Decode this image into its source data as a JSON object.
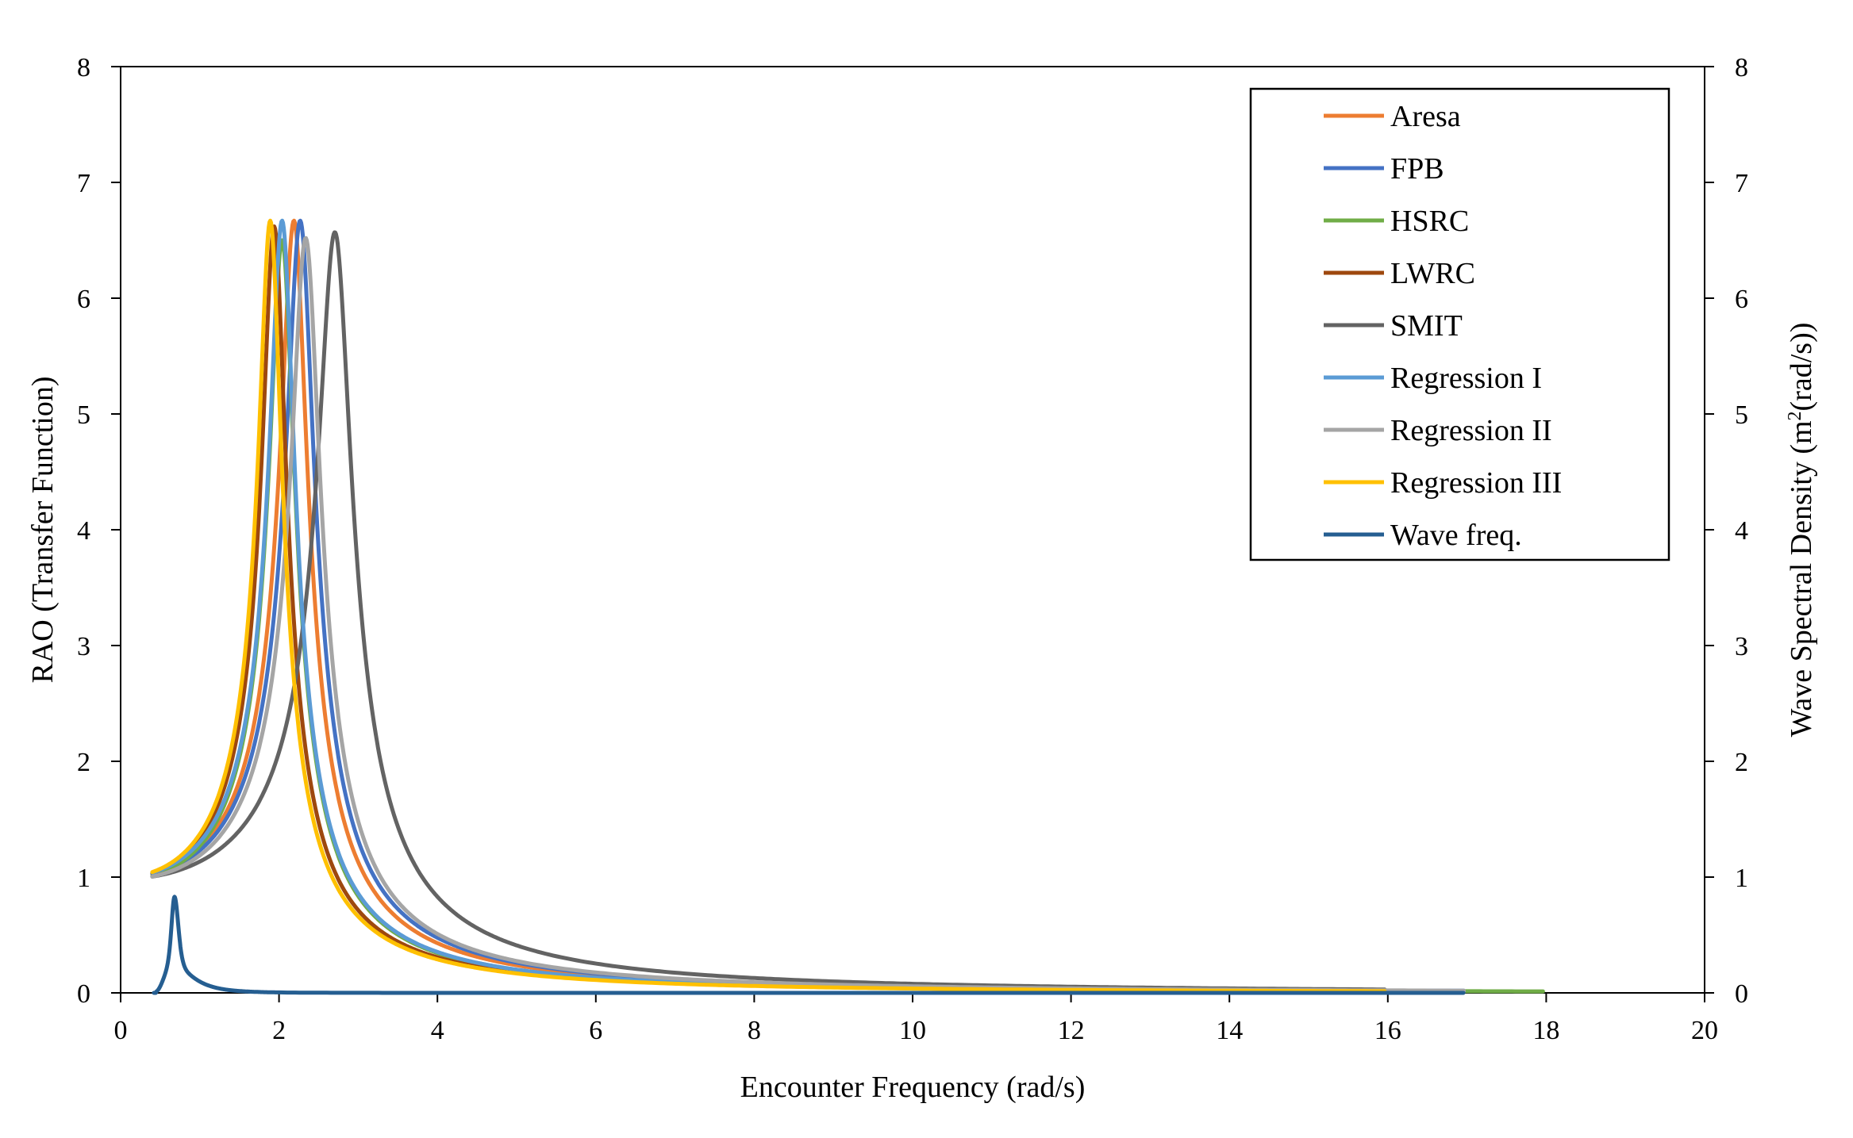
{
  "chart_data": {
    "type": "line",
    "title": "",
    "xlabel": "Encounter Frequency (rad/s)",
    "ylabel": "RAO (Transfer Function)",
    "y2label_main": "Wave Spectral Density (m",
    "y2label_sup": "2",
    "y2label_tail": "(rad/s))",
    "xlim": [
      0,
      20
    ],
    "ylim": [
      0,
      8
    ],
    "y2lim": [
      0,
      8
    ],
    "x_ticks": [
      "0",
      "2",
      "4",
      "6",
      "8",
      "10",
      "12",
      "14",
      "16",
      "18",
      "20"
    ],
    "y_ticks": [
      "0",
      "1",
      "2",
      "3",
      "4",
      "5",
      "6",
      "7",
      "8"
    ],
    "y2_ticks": [
      "0",
      "1",
      "2",
      "3",
      "4",
      "5",
      "6",
      "7",
      "8"
    ],
    "legend_position": "top-right",
    "series": [
      {
        "name": "Aresa",
        "color": "#ED7D31",
        "peak_x": 2.2,
        "peak_y": 6.67,
        "x_start": 0.4,
        "x_end": 16.0,
        "y_start": 1.04
      },
      {
        "name": "FPB",
        "color": "#4472C4",
        "peak_x": 2.28,
        "peak_y": 6.67,
        "x_start": 0.4,
        "x_end": 17.0,
        "y_start": 1.04
      },
      {
        "name": "HSRC",
        "color": "#70AD47",
        "peak_x": 2.05,
        "peak_y": 6.5,
        "x_start": 0.4,
        "x_end": 18.0,
        "y_start": 1.04
      },
      {
        "name": "LWRC",
        "color": "#9E480E",
        "peak_x": 1.95,
        "peak_y": 6.62,
        "x_start": 0.4,
        "x_end": 16.0,
        "y_start": 1.04
      },
      {
        "name": "SMIT",
        "color": "#636363",
        "peak_x": 2.72,
        "peak_y": 6.57,
        "x_start": 0.4,
        "x_end": 16.0,
        "y_start": 1.02
      },
      {
        "name": "Regression I",
        "color": "#5B9BD5",
        "peak_x": 2.05,
        "peak_y": 6.67,
        "x_start": 0.4,
        "x_end": 17.0,
        "y_start": 1.04
      },
      {
        "name": "Regression II",
        "color": "#A5A5A5",
        "peak_x": 2.35,
        "peak_y": 6.52,
        "x_start": 0.4,
        "x_end": 17.0,
        "y_start": 1.03
      },
      {
        "name": "Regression III",
        "color": "#FFC000",
        "peak_x": 1.9,
        "peak_y": 6.67,
        "x_start": 0.4,
        "x_end": 16.0,
        "y_start": 1.05
      },
      {
        "name": "Wave freq.",
        "color": "#255E91",
        "axis": "secondary",
        "peak_x": 0.68,
        "peak_y": 0.83,
        "x_start": 0.42,
        "x_end": 17.0
      }
    ]
  }
}
